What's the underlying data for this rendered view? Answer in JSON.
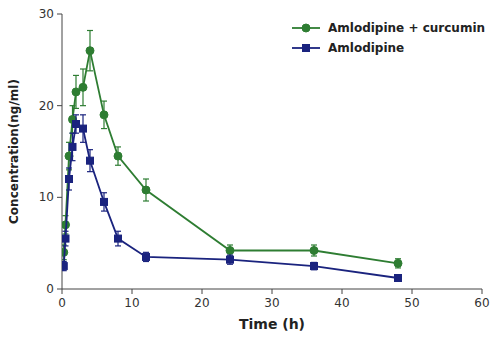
{
  "chart_data": {
    "type": "line",
    "xlabel": "Time (h)",
    "ylabel": "Concentration(ng/ml)",
    "x": [
      0.25,
      0.5,
      1.0,
      1.5,
      2.0,
      3.0,
      4.0,
      6.0,
      8.0,
      12.0,
      24.0,
      36.0,
      48.0
    ],
    "xlim": [
      0,
      60
    ],
    "ylim": [
      0,
      30
    ],
    "xticks": [
      0,
      10,
      20,
      30,
      40,
      50,
      60
    ],
    "yticks": [
      0,
      10,
      20,
      30
    ],
    "legend": "upper right",
    "series": [
      {
        "name": "Amlodipine + curcumin",
        "color": "#2e7d32",
        "marker": "circle",
        "values": [
          4.0,
          7.0,
          14.5,
          18.5,
          21.5,
          22.0,
          26.0,
          19.0,
          14.5,
          10.8,
          4.2,
          4.2,
          2.8
        ],
        "errors": [
          0.8,
          1.0,
          1.5,
          1.5,
          1.8,
          2.0,
          2.2,
          1.5,
          1.0,
          1.2,
          0.6,
          0.6,
          0.5
        ]
      },
      {
        "name": "Amlodipine",
        "color": "#1a237e",
        "marker": "square",
        "values": [
          2.5,
          5.5,
          12.0,
          15.5,
          18.0,
          17.5,
          14.0,
          9.5,
          5.5,
          3.5,
          3.2,
          2.5,
          1.2
        ],
        "errors": [
          0.5,
          0.8,
          1.2,
          1.5,
          1.0,
          1.5,
          1.2,
          1.0,
          0.8,
          0.5,
          0.5,
          0.4,
          0.3
        ]
      }
    ]
  }
}
